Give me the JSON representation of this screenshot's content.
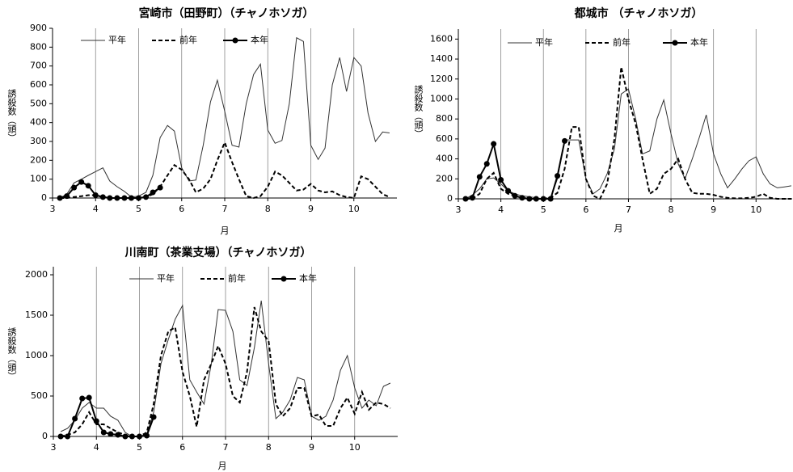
{
  "chart_data": [
    {
      "type": "line",
      "title": "宮崎市（田野町）（チャノホソガ）",
      "x_label": "月",
      "y_label": "誘殺数（頭）",
      "x": [
        3.17,
        3.33,
        3.5,
        3.67,
        3.83,
        4.0,
        4.17,
        4.33,
        4.5,
        4.67,
        4.83,
        5.0,
        5.17,
        5.33,
        5.5,
        5.67,
        5.83,
        6.0,
        6.17,
        6.33,
        6.5,
        6.67,
        6.83,
        7.0,
        7.17,
        7.33,
        7.5,
        7.67,
        7.83,
        8.0,
        8.17,
        8.33,
        8.5,
        8.67,
        8.83,
        9.0,
        9.17,
        9.33,
        9.5,
        9.67,
        9.83,
        10.0,
        10.17,
        10.33,
        10.5,
        10.67,
        10.83
      ],
      "xlim": [
        3,
        11
      ],
      "xticks": [
        3,
        4,
        5,
        6,
        7,
        8,
        9,
        10
      ],
      "ylim": [
        0,
        900
      ],
      "yticks": [
        0,
        100,
        200,
        300,
        400,
        500,
        600,
        700,
        800,
        900
      ],
      "xgrid": true,
      "series": [
        {
          "name": "平年",
          "color": "#333333",
          "line_style": "solid",
          "marker": false,
          "values": [
            0,
            20,
            80,
            100,
            120,
            140,
            160,
            90,
            60,
            35,
            5,
            10,
            30,
            120,
            320,
            385,
            355,
            160,
            90,
            95,
            280,
            510,
            625,
            460,
            280,
            270,
            500,
            655,
            710,
            360,
            290,
            305,
            500,
            850,
            830,
            280,
            205,
            265,
            600,
            745,
            565,
            745,
            700,
            450,
            300,
            350,
            345
          ]
        },
        {
          "name": "前年",
          "color": "#000000",
          "line_style": "dashed",
          "marker": false,
          "values": [
            0,
            0,
            5,
            10,
            15,
            15,
            5,
            0,
            0,
            0,
            0,
            0,
            5,
            20,
            60,
            120,
            175,
            150,
            100,
            30,
            50,
            100,
            200,
            295,
            190,
            100,
            10,
            0,
            10,
            60,
            140,
            120,
            80,
            40,
            45,
            75,
            40,
            30,
            35,
            15,
            5,
            0,
            115,
            100,
            60,
            20,
            5
          ]
        },
        {
          "name": "本年",
          "color": "#000000",
          "line_style": "solid",
          "marker": true,
          "values": [
            0,
            10,
            55,
            85,
            65,
            15,
            5,
            0,
            0,
            0,
            0,
            0,
            5,
            30,
            55,
            null,
            null,
            null,
            null,
            null,
            null,
            null,
            null,
            null,
            null,
            null,
            null,
            null,
            null,
            null,
            null,
            null,
            null,
            null,
            null,
            null,
            null,
            null,
            null,
            null,
            null,
            null,
            null,
            null,
            null,
            null,
            null
          ]
        }
      ]
    },
    {
      "type": "line",
      "title": "都城市 （チャノホソガ）",
      "x_label": "月",
      "y_label": "誘殺数（頭）",
      "x": [
        3.17,
        3.33,
        3.5,
        3.67,
        3.83,
        4.0,
        4.17,
        4.33,
        4.5,
        4.67,
        4.83,
        5.0,
        5.17,
        5.33,
        5.5,
        5.67,
        5.83,
        6.0,
        6.17,
        6.33,
        6.5,
        6.67,
        6.83,
        7.0,
        7.17,
        7.33,
        7.5,
        7.67,
        7.83,
        8.0,
        8.17,
        8.33,
        8.5,
        8.67,
        8.83,
        9.0,
        9.17,
        9.33,
        9.5,
        9.67,
        9.83,
        10.0,
        10.17,
        10.33,
        10.5,
        10.67,
        10.83
      ],
      "xlim": [
        3,
        10.85
      ],
      "xticks": [
        3,
        4,
        5,
        6,
        7,
        8,
        9,
        10
      ],
      "ylim": [
        0,
        1700
      ],
      "yticks": [
        0,
        200,
        400,
        600,
        800,
        1000,
        1200,
        1400,
        1600
      ],
      "xgrid": true,
      "series": [
        {
          "name": "平年",
          "color": "#333333",
          "line_style": "solid",
          "marker": false,
          "values": [
            0,
            40,
            100,
            200,
            210,
            150,
            80,
            50,
            30,
            20,
            10,
            0,
            10,
            200,
            590,
            590,
            590,
            200,
            50,
            100,
            250,
            500,
            1050,
            1100,
            800,
            450,
            480,
            800,
            990,
            650,
            350,
            200,
            400,
            620,
            840,
            450,
            250,
            110,
            200,
            300,
            380,
            420,
            250,
            150,
            110,
            120,
            130
          ]
        },
        {
          "name": "前年",
          "color": "#000000",
          "line_style": "dashed",
          "marker": false,
          "values": [
            0,
            0,
            50,
            200,
            260,
            100,
            50,
            30,
            10,
            0,
            0,
            0,
            10,
            60,
            300,
            720,
            720,
            200,
            30,
            0,
            150,
            600,
            1320,
            1000,
            750,
            400,
            50,
            100,
            250,
            300,
            400,
            200,
            60,
            50,
            50,
            40,
            20,
            10,
            5,
            5,
            10,
            20,
            50,
            10,
            0,
            0,
            0
          ]
        },
        {
          "name": "本年",
          "color": "#000000",
          "line_style": "solid",
          "marker": true,
          "values": [
            0,
            10,
            220,
            350,
            550,
            190,
            80,
            30,
            10,
            0,
            0,
            0,
            0,
            230,
            580,
            null,
            null,
            null,
            null,
            null,
            null,
            null,
            null,
            null,
            null,
            null,
            null,
            null,
            null,
            null,
            null,
            null,
            null,
            null,
            null,
            null,
            null,
            null,
            null,
            null,
            null,
            null,
            null,
            null,
            null,
            null,
            null
          ]
        }
      ]
    },
    {
      "type": "line",
      "title": "川南町（茶業支場）（チャノホソガ）",
      "x_label": "月",
      "y_label": "誘殺数（頭）",
      "x": [
        3.17,
        3.33,
        3.5,
        3.67,
        3.83,
        4.0,
        4.17,
        4.33,
        4.5,
        4.67,
        4.83,
        5.0,
        5.17,
        5.33,
        5.5,
        5.67,
        5.83,
        6.0,
        6.17,
        6.33,
        6.5,
        6.67,
        6.83,
        7.0,
        7.17,
        7.33,
        7.5,
        7.67,
        7.83,
        8.0,
        8.17,
        8.33,
        8.5,
        8.67,
        8.83,
        9.0,
        9.17,
        9.33,
        9.5,
        9.67,
        9.83,
        10.0,
        10.17,
        10.33,
        10.5,
        10.67,
        10.83
      ],
      "xlim": [
        3,
        11
      ],
      "xticks": [
        3,
        4,
        5,
        6,
        7,
        8,
        9,
        10
      ],
      "ylim": [
        0,
        2100
      ],
      "yticks": [
        0,
        500,
        1000,
        1500,
        2000
      ],
      "xgrid": true,
      "series": [
        {
          "name": "平年",
          "color": "#333333",
          "line_style": "solid",
          "marker": false,
          "values": [
            60,
            100,
            200,
            350,
            420,
            350,
            350,
            250,
            200,
            50,
            0,
            0,
            30,
            300,
            900,
            1200,
            1450,
            1620,
            700,
            550,
            400,
            900,
            1570,
            1560,
            1300,
            700,
            630,
            1100,
            1680,
            900,
            220,
            300,
            450,
            730,
            700,
            250,
            200,
            250,
            450,
            820,
            1000,
            600,
            350,
            450,
            380,
            620,
            660
          ]
        },
        {
          "name": "前年",
          "color": "#000000",
          "line_style": "dashed",
          "marker": false,
          "values": [
            0,
            20,
            50,
            150,
            300,
            150,
            150,
            100,
            50,
            20,
            0,
            0,
            50,
            400,
            1000,
            1300,
            1350,
            800,
            500,
            120,
            700,
            900,
            1120,
            900,
            500,
            420,
            800,
            1600,
            1300,
            1180,
            400,
            250,
            350,
            600,
            600,
            250,
            270,
            130,
            130,
            350,
            480,
            280,
            550,
            330,
            420,
            400,
            350
          ]
        },
        {
          "name": "本年",
          "color": "#000000",
          "line_style": "solid",
          "marker": true,
          "values": [
            0,
            0,
            220,
            470,
            480,
            190,
            50,
            30,
            20,
            0,
            0,
            0,
            10,
            240,
            null,
            null,
            null,
            null,
            null,
            null,
            null,
            null,
            null,
            null,
            null,
            null,
            null,
            null,
            null,
            null,
            null,
            null,
            null,
            null,
            null,
            null,
            null,
            null,
            null,
            null,
            null,
            null,
            null,
            null,
            null,
            null,
            null
          ]
        }
      ]
    }
  ]
}
